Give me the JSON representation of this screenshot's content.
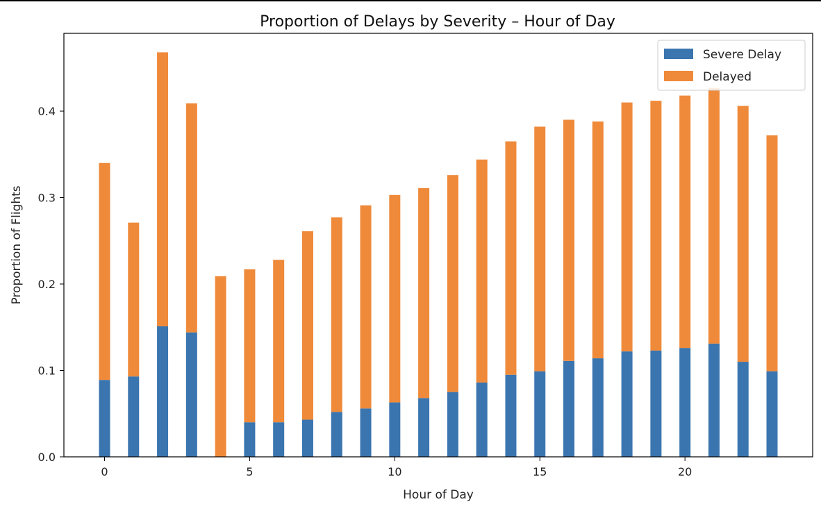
{
  "chart_data": {
    "type": "bar",
    "stacked": true,
    "title": "Proportion of Delays by Severity – Hour of Day",
    "xlabel": "Hour of Day",
    "ylabel": "Proportion of Flights",
    "x": [
      0,
      1,
      2,
      3,
      4,
      5,
      6,
      7,
      8,
      9,
      10,
      11,
      12,
      13,
      14,
      15,
      16,
      17,
      18,
      19,
      20,
      21,
      22,
      23
    ],
    "xlim": [
      -1.4,
      24.4
    ],
    "ylim": [
      0,
      0.49
    ],
    "xticks": [
      "0",
      "5",
      "10",
      "15",
      "20"
    ],
    "yticks": [
      "0.0",
      "0.1",
      "0.2",
      "0.3",
      "0.4"
    ],
    "series": [
      {
        "name": "Severe Delay",
        "color": "#3a75af",
        "values": [
          0.089,
          0.093,
          0.151,
          0.144,
          0.0,
          0.04,
          0.04,
          0.043,
          0.052,
          0.056,
          0.063,
          0.068,
          0.075,
          0.086,
          0.095,
          0.099,
          0.111,
          0.114,
          0.122,
          0.123,
          0.126,
          0.131,
          0.11,
          0.099
        ]
      },
      {
        "name": "Delayed",
        "color": "#ef8a3a",
        "values": [
          0.251,
          0.178,
          0.317,
          0.265,
          0.209,
          0.177,
          0.188,
          0.218,
          0.225,
          0.235,
          0.24,
          0.243,
          0.251,
          0.258,
          0.27,
          0.283,
          0.279,
          0.274,
          0.288,
          0.289,
          0.292,
          0.296,
          0.296,
          0.273
        ]
      }
    ],
    "grid": false,
    "legend_position": "top-right"
  }
}
